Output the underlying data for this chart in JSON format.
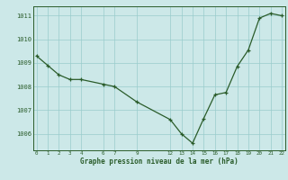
{
  "x": [
    0,
    1,
    2,
    3,
    4,
    6,
    7,
    9,
    12,
    13,
    14,
    15,
    16,
    17,
    18,
    19,
    20,
    21,
    22
  ],
  "y": [
    1009.3,
    1008.9,
    1008.5,
    1008.3,
    1008.3,
    1008.1,
    1008.0,
    1007.35,
    1006.6,
    1006.0,
    1005.6,
    1006.65,
    1007.65,
    1007.75,
    1008.85,
    1009.55,
    1010.9,
    1011.1,
    1011.0
  ],
  "line_color": "#2a5c2a",
  "marker_color": "#2a5c2a",
  "bg_color": "#cce8e8",
  "grid_color": "#99cccc",
  "title": "Graphe pression niveau de la mer (hPa)",
  "xlabel_ticks": [
    0,
    1,
    2,
    3,
    4,
    6,
    7,
    9,
    12,
    13,
    14,
    15,
    16,
    17,
    18,
    19,
    20,
    21,
    22
  ],
  "ylim": [
    1005.3,
    1011.4
  ],
  "yticks": [
    1006,
    1007,
    1008,
    1009,
    1010,
    1011
  ],
  "xlim": [
    -0.3,
    22.3
  ]
}
